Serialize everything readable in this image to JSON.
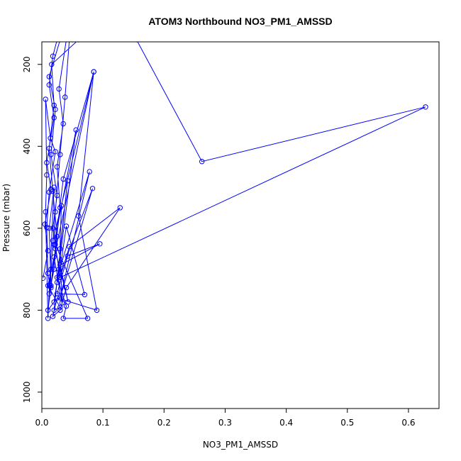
{
  "chart_data": {
    "type": "line",
    "title": "ATOM3 Northbound NO3_PM1_AMSSD",
    "xlabel": "NO3_PM1_AMSSD",
    "ylabel": "Pressure (mbar)",
    "xlim": [
      0,
      0.65
    ],
    "ylim": [
      1040,
      145
    ],
    "y_reversed": true,
    "x_ticks": [
      {
        "value": 0.0,
        "label": "0.0"
      },
      {
        "value": 0.1,
        "label": "0.1"
      },
      {
        "value": 0.2,
        "label": "0.2"
      },
      {
        "value": 0.3,
        "label": "0.3"
      },
      {
        "value": 0.4,
        "label": "0.4"
      },
      {
        "value": 0.5,
        "label": "0.5"
      },
      {
        "value": 0.6,
        "label": "0.6"
      }
    ],
    "y_ticks": [
      {
        "value": 200,
        "label": "200"
      },
      {
        "value": 400,
        "label": "400"
      },
      {
        "value": 600,
        "label": "600"
      },
      {
        "value": 800,
        "label": "800"
      },
      {
        "value": 1000,
        "label": "1000"
      }
    ],
    "grid": false,
    "series": [
      {
        "color": "#0000ff",
        "marker": "open-circle",
        "points": [
          [
            0.002,
            722
          ],
          [
            0.01,
            655
          ],
          [
            0.005,
            590
          ],
          [
            0.015,
            505
          ],
          [
            0.008,
            440
          ],
          [
            0.02,
            330
          ],
          [
            0.012,
            250
          ],
          [
            0.018,
            180
          ],
          [
            0.025,
            140
          ],
          [
            0.03,
            140
          ],
          [
            0.012,
            230
          ],
          [
            0.022,
            310
          ],
          [
            0.015,
            420
          ],
          [
            0.025,
            520
          ],
          [
            0.018,
            600
          ],
          [
            0.028,
            700
          ],
          [
            0.02,
            780
          ],
          [
            0.01,
            800
          ],
          [
            0.015,
            745
          ],
          [
            0.022,
            650
          ],
          [
            0.03,
            550
          ],
          [
            0.025,
            450
          ],
          [
            0.035,
            345
          ],
          [
            0.028,
            260
          ],
          [
            0.04,
            140
          ],
          [
            0.045,
            140
          ],
          [
            0.038,
            280
          ],
          [
            0.03,
            420
          ],
          [
            0.022,
            560
          ],
          [
            0.015,
            700
          ],
          [
            0.012,
            760
          ],
          [
            0.02,
            700
          ],
          [
            0.025,
            620
          ],
          [
            0.018,
            510
          ],
          [
            0.012,
            405
          ],
          [
            0.02,
            300
          ],
          [
            0.016,
            200
          ],
          [
            0.06,
            140
          ],
          [
            0.05,
            140
          ],
          [
            0.155,
            140
          ],
          [
            0.262,
            437
          ],
          [
            0.628,
            304
          ],
          [
            0.03,
            720
          ],
          [
            0.045,
            645
          ],
          [
            0.128,
            550
          ],
          [
            0.04,
            745
          ],
          [
            0.03,
            800
          ],
          [
            0.018,
            815
          ],
          [
            0.025,
            770
          ],
          [
            0.09,
            800
          ],
          [
            0.06,
            570
          ],
          [
            0.085,
            218
          ],
          [
            0.035,
            480
          ],
          [
            0.022,
            640
          ],
          [
            0.075,
            820
          ],
          [
            0.035,
            820
          ],
          [
            0.04,
            790
          ],
          [
            0.025,
            720
          ],
          [
            0.078,
            462
          ],
          [
            0.03,
            770
          ],
          [
            0.083,
            503
          ],
          [
            0.025,
            732
          ],
          [
            0.056,
            360
          ],
          [
            0.02,
            640
          ],
          [
            0.043,
            780
          ],
          [
            0.03,
            690
          ],
          [
            0.095,
            638
          ],
          [
            0.042,
            668
          ],
          [
            0.025,
            760
          ],
          [
            0.07,
            762
          ],
          [
            0.04,
            595
          ],
          [
            0.028,
            720
          ],
          [
            0.032,
            545
          ],
          [
            0.018,
            630
          ],
          [
            0.085,
            218
          ],
          [
            0.01,
            740
          ],
          [
            0.03,
            793
          ],
          [
            0.02,
            800
          ],
          [
            0.042,
            484
          ],
          [
            0.03,
            650
          ],
          [
            0.033,
            782
          ],
          [
            0.02,
            670
          ],
          [
            0.015,
            740
          ],
          [
            0.012,
            600
          ],
          [
            0.02,
            500
          ],
          [
            0.01,
            820
          ],
          [
            0.006,
            560
          ],
          [
            0.008,
            470
          ],
          [
            0.006,
            285
          ],
          [
            0.014,
            380
          ],
          [
            0.022,
            413
          ],
          [
            0.012,
            512
          ],
          [
            0.008,
            598
          ],
          [
            0.01,
            710
          ],
          [
            0.013,
            740
          ]
        ]
      }
    ]
  }
}
